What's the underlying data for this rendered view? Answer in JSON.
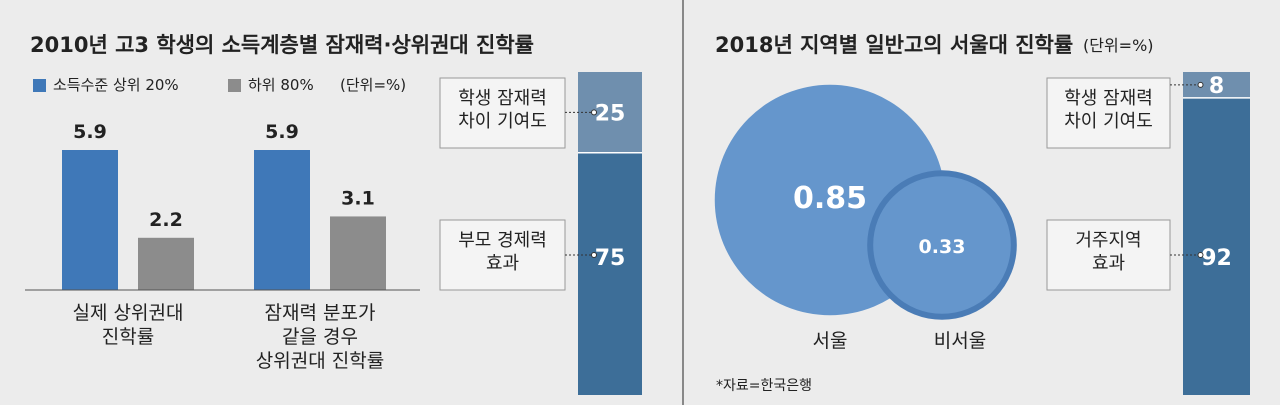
{
  "chart_data": [
    {
      "type": "bar",
      "title": "2010년 고3 학생의 소득계층별 잠재력·상위권대 진학률",
      "unit": "(단위=%)",
      "categories": [
        "실제 상위권대\n진학률",
        "잠재력 분포가\n같을 경우\n상위권대 진학률"
      ],
      "series": [
        {
          "name": "소득수준 상위 20%",
          "color": "#3f78b8",
          "values": [
            5.9,
            5.9
          ]
        },
        {
          "name": "하위 80%",
          "color": "#8c8c8c",
          "values": [
            2.2,
            3.1
          ]
        }
      ]
    },
    {
      "type": "stacked-bar",
      "series": [
        {
          "name": "학생 잠재력\n차이 기여도",
          "color": "#6f8fae",
          "values": [
            25
          ]
        },
        {
          "name": "부모 경제력\n효과",
          "color": "#3d6e98",
          "values": [
            75
          ]
        }
      ]
    },
    {
      "type": "bubble",
      "title": "2018년 지역별 일반고의 서울대 진학률",
      "unit": "(단위=%)",
      "categories": [
        "서울",
        "비서울"
      ],
      "values": [
        0.85,
        0.33
      ],
      "color": "#6596cc",
      "source": "*자료=한국은행"
    },
    {
      "type": "stacked-bar",
      "series": [
        {
          "name": "학생 잠재력\n차이 기여도",
          "color": "#6f8fae",
          "values": [
            8
          ]
        },
        {
          "name": "거주지역\n효과",
          "color": "#3d6e98",
          "values": [
            92
          ]
        }
      ]
    }
  ]
}
